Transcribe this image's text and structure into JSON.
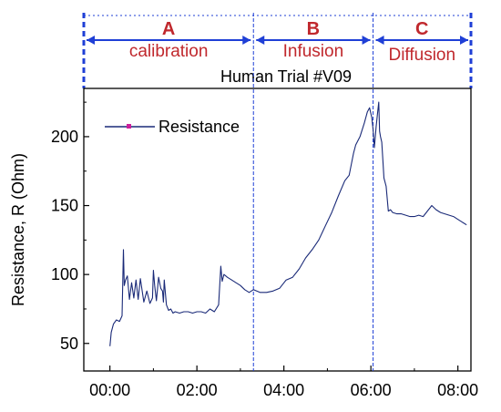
{
  "chart_data": {
    "type": "line",
    "title": "Human Trial #V09",
    "xlabel": "",
    "ylabel": "Resistance, R (Ohm)",
    "xlim": [
      -0.6,
      8.3
    ],
    "ylim": [
      30,
      235
    ],
    "xticks": [
      0,
      2,
      4,
      6,
      8
    ],
    "xtick_labels": [
      "00:00",
      "02:00",
      "04:00",
      "06:00",
      "08:00"
    ],
    "yticks": [
      50,
      100,
      150,
      200
    ],
    "ytick_labels": [
      "50",
      "100",
      "150",
      "200"
    ],
    "legend": {
      "position": "top-left",
      "entries": [
        "Resistance"
      ]
    },
    "grid": false,
    "series": [
      {
        "name": "Resistance",
        "color": "#1a2a78",
        "x": [
          0.0,
          0.03,
          0.08,
          0.15,
          0.22,
          0.28,
          0.31,
          0.33,
          0.36,
          0.4,
          0.45,
          0.5,
          0.55,
          0.6,
          0.65,
          0.7,
          0.78,
          0.85,
          0.92,
          0.98,
          1.0,
          1.03,
          1.07,
          1.12,
          1.17,
          1.21,
          1.23,
          1.25,
          1.3,
          1.35,
          1.4,
          1.45,
          1.5,
          1.6,
          1.7,
          1.8,
          1.9,
          2.0,
          2.1,
          2.2,
          2.3,
          2.4,
          2.5,
          2.55,
          2.58,
          2.62,
          2.7,
          2.8,
          2.9,
          3.0,
          3.1,
          3.2,
          3.3,
          3.45,
          3.6,
          3.75,
          3.9,
          4.05,
          4.2,
          4.35,
          4.5,
          4.65,
          4.8,
          4.95,
          5.1,
          5.25,
          5.4,
          5.5,
          5.55,
          5.6,
          5.65,
          5.75,
          5.85,
          5.92,
          5.97,
          6.02,
          6.05,
          6.08,
          6.12,
          6.15,
          6.18,
          6.2,
          6.22,
          6.25,
          6.28,
          6.3,
          6.35,
          6.4,
          6.45,
          6.5,
          6.6,
          6.7,
          6.8,
          6.9,
          7.0,
          7.1,
          7.2,
          7.3,
          7.4,
          7.5,
          7.6,
          7.7,
          7.8,
          7.9,
          8.0,
          8.1,
          8.2
        ],
        "y": [
          48,
          58,
          64,
          67,
          66,
          70,
          118,
          92,
          96,
          99,
          82,
          94,
          83,
          96,
          82,
          97,
          80,
          88,
          79,
          83,
          103,
          92,
          81,
          98,
          90,
          88,
          80,
          96,
          78,
          74,
          75,
          72,
          73,
          72,
          73,
          73,
          72,
          73,
          73,
          72,
          75,
          73,
          78,
          106,
          95,
          100,
          98,
          96,
          94,
          92,
          89,
          87,
          89,
          87,
          87,
          88,
          90,
          96,
          98,
          104,
          112,
          118,
          125,
          135,
          145,
          157,
          168,
          172,
          180,
          188,
          194,
          200,
          210,
          218,
          221,
          214,
          205,
          192,
          207,
          216,
          225,
          204,
          200,
          196,
          181,
          170,
          164,
          146,
          147,
          145,
          144,
          144,
          143,
          142,
          142,
          143,
          142,
          146,
          150,
          147,
          145,
          144,
          143,
          142,
          140,
          138,
          136
        ]
      }
    ],
    "phases": [
      {
        "letter": "A",
        "name": "calibration",
        "start": -0.6,
        "end": 3.3
      },
      {
        "letter": "B",
        "name": "Infusion",
        "start": 3.3,
        "end": 6.05
      },
      {
        "letter": "C",
        "name": "Diffusion",
        "start": 6.05,
        "end": 8.3
      }
    ],
    "phase_boundaries": [
      3.3,
      6.05
    ],
    "colors": {
      "line": "#1a2a78",
      "boundary": "#1f3fd6",
      "phase_text": "#c0282d",
      "legend_marker": "#cc1f9c"
    }
  }
}
